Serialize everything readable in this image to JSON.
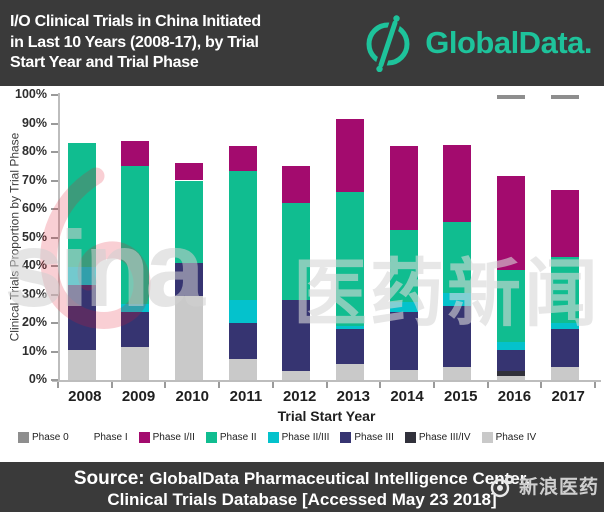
{
  "header": {
    "title": "I/O Clinical Trials in China Initiated\nin Last 10 Years (2008-17), by Trial\nStart Year and Trial Phase",
    "brand": "GlobalData.",
    "brand_color": "#1ec39b",
    "background_color": "#3a3a3a"
  },
  "chart_data": {
    "type": "bar",
    "stacked": true,
    "title": "I/O Clinical Trials in China Initiated in Last 10 Years (2008-17), by Trial Start Year and Trial Phase",
    "xlabel": "Trial Start Year",
    "ylabel": "Clinical Trials Proportion by Trial Phase",
    "ylim": [
      0,
      100
    ],
    "ytick_step": 10,
    "ytick_suffix": "%",
    "grid": false,
    "legend_position": "bottom",
    "categories": [
      "2008",
      "2009",
      "2010",
      "2011",
      "2012",
      "2013",
      "2014",
      "2015",
      "2016",
      "2017"
    ],
    "series": [
      {
        "name": "Phase IV",
        "color": "#c9c9c9",
        "values": [
          10.5,
          11.5,
          29.5,
          7.5,
          3,
          5.5,
          3.5,
          4.5,
          1.5,
          4.5
        ]
      },
      {
        "name": "Phase III/IV",
        "color": "#31313b",
        "values": [
          0,
          0,
          0,
          0,
          0,
          0,
          0,
          0,
          1.5,
          0
        ]
      },
      {
        "name": "Phase III",
        "color": "#363471",
        "values": [
          23,
          12.5,
          11.5,
          12.5,
          25,
          12.5,
          20.5,
          21.5,
          7.5,
          13.5
        ]
      },
      {
        "name": "Phase II/III",
        "color": "#04c2cc",
        "values": [
          6,
          2.5,
          0,
          8,
          0,
          1,
          3.5,
          4.5,
          3,
          2
        ]
      },
      {
        "name": "Phase II",
        "color": "#10bd90",
        "values": [
          43.5,
          48.5,
          29,
          45.5,
          34,
          47,
          25,
          25,
          25,
          23
        ]
      },
      {
        "name": "Phase I/II",
        "color": "#a30b6e",
        "values": [
          0,
          9,
          6,
          8.5,
          13,
          25.5,
          29.5,
          27,
          33,
          23.5
        ]
      },
      {
        "name": "Phase I",
        "color": "#ffffff",
        "values": [
          17,
          16,
          24,
          18,
          25,
          8.5,
          18,
          17.5,
          27,
          32
        ]
      },
      {
        "name": "Phase 0",
        "color": "#8e8e8e",
        "values": [
          0,
          0,
          0,
          0,
          0,
          0,
          0,
          0,
          1.5,
          1.5
        ]
      }
    ],
    "legend_order": [
      "Phase 0",
      "Phase I",
      "Phase I/II",
      "Phase II",
      "Phase II/III",
      "Phase III",
      "Phase III/IV",
      "Phase IV"
    ]
  },
  "watermark": {
    "latin": "sina",
    "cn": "医药新闻"
  },
  "footer": {
    "source_label": "Source:",
    "line1": "GlobalData Pharmaceutical Intelligence Center,",
    "line2": "Clinical Trials Database [Accessed May 23 2018]",
    "sina_badge": "新浪医药"
  }
}
